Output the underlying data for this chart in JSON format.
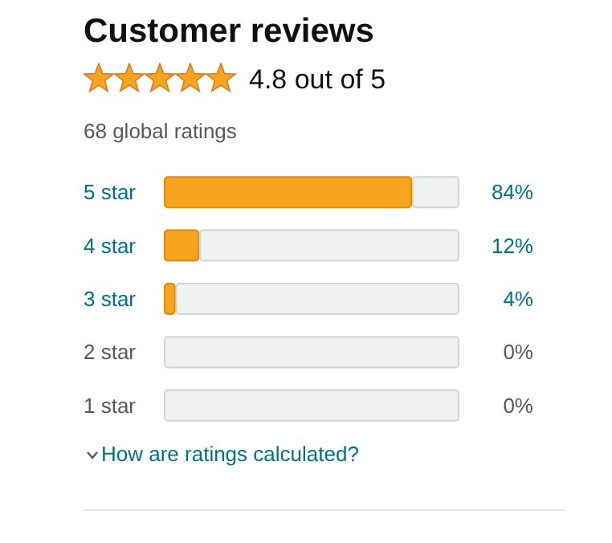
{
  "chart_data": {
    "type": "bar",
    "orientation": "horizontal",
    "stacked": true,
    "title": "Customer reviews",
    "annotations": [
      "4.8 out of 5",
      "68 global ratings",
      "How are ratings calculated?"
    ],
    "categories": [
      "5 star",
      "4 star",
      "3 star",
      "2 star",
      "1 star"
    ],
    "series": [
      {
        "color": "#f7a51f",
        "values": [
          84,
          12,
          4,
          0,
          0
        ],
        "value_labels": [
          "84%",
          "12%",
          "4%",
          "0%",
          "0%"
        ]
      },
      {
        "color": "#f0f2f2",
        "values": [
          16,
          88,
          96,
          100,
          100
        ]
      }
    ],
    "xlim": [
      0,
      100
    ]
  }
}
